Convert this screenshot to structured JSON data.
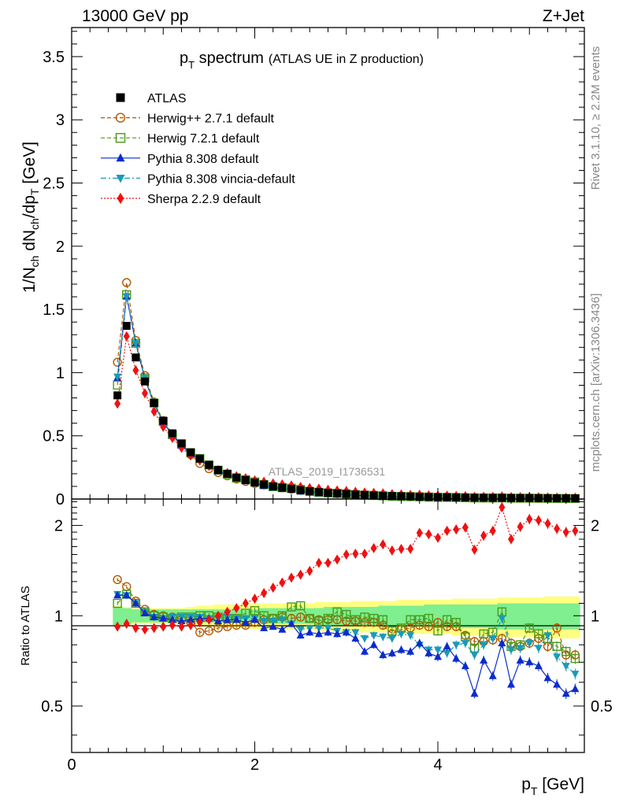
{
  "header": {
    "energy_label": "13000 GeV pp",
    "process_label": "Z+Jet"
  },
  "side_labels": {
    "rivet": "Rivet 3.1.10, ≥ 2.2M events",
    "mcplots": "mcplots.cern.ch [arXiv:1306.3436]"
  },
  "title": {
    "main": "p",
    "main_sub": "T",
    "main_rest": " spectrum",
    "detail": "(ATLAS UE in Z production)"
  },
  "watermark": "ATLAS_2019_I1736531",
  "axes": {
    "x_label_main": "p",
    "x_label_sub": "T",
    "x_label_unit": " [GeV]",
    "y_label_top": "1/N_ch dN_ch/dp_T [GeV]",
    "y_label_bottom": "Ratio to ATLAS",
    "x_ticks": [
      "0",
      "2",
      "4"
    ],
    "y_ticks_top": [
      "0",
      "0.5",
      "1",
      "1.5",
      "2",
      "2.5",
      "3",
      "3.5"
    ],
    "y_ticks_bottom": [
      "0.5",
      "1",
      "2"
    ]
  },
  "chart_data": {
    "type": "scatter",
    "x_range": [
      0,
      5.6
    ],
    "top_y_range": [
      0,
      3.73
    ],
    "ratio_y_range": [
      0.35,
      2.45
    ],
    "ratio_log_scale": true,
    "x": [
      0.5,
      0.6,
      0.7,
      0.8,
      0.9,
      1.0,
      1.1,
      1.2,
      1.3,
      1.4,
      1.5,
      1.6,
      1.7,
      1.8,
      1.9,
      2.0,
      2.1,
      2.2,
      2.3,
      2.4,
      2.5,
      2.6,
      2.7,
      2.8,
      2.9,
      3.0,
      3.1,
      3.2,
      3.3,
      3.4,
      3.5,
      3.6,
      3.7,
      3.8,
      3.9,
      4.0,
      4.1,
      4.2,
      4.3,
      4.4,
      4.5,
      4.6,
      4.7,
      4.8,
      4.9,
      5.0,
      5.1,
      5.2,
      5.3,
      5.4,
      5.5
    ],
    "atlas_values": [
      0.82,
      1.37,
      1.12,
      0.93,
      0.76,
      0.62,
      0.52,
      0.44,
      0.37,
      0.32,
      0.27,
      0.23,
      0.2,
      0.17,
      0.15,
      0.13,
      0.115,
      0.1,
      0.09,
      0.08,
      0.07,
      0.062,
      0.055,
      0.049,
      0.044,
      0.04,
      0.036,
      0.032,
      0.029,
      0.026,
      0.024,
      0.022,
      0.02,
      0.018,
      0.016,
      0.015,
      0.014,
      0.013,
      0.012,
      0.011,
      0.01,
      0.0095,
      0.009,
      0.0085,
      0.008,
      0.0075,
      0.007,
      0.0065,
      0.006,
      0.0058,
      0.0055
    ],
    "ratio_band_inner": [
      0.07,
      0.06,
      0.05,
      0.05,
      0.05,
      0.05,
      0.05,
      0.05,
      0.05,
      0.05,
      0.05,
      0.05,
      0.05,
      0.05,
      0.05,
      0.05,
      0.06,
      0.06,
      0.06,
      0.06,
      0.06,
      0.06,
      0.06,
      0.07,
      0.07,
      0.07,
      0.07,
      0.07,
      0.07,
      0.08,
      0.08,
      0.08,
      0.08,
      0.08,
      0.09,
      0.09,
      0.09,
      0.09,
      0.09,
      0.09,
      0.09,
      0.09,
      0.1,
      0.1,
      0.1,
      0.1,
      0.1,
      0.1,
      0.1,
      0.1,
      0.1
    ],
    "ratio_band_outer": [
      0.08,
      0.07,
      0.06,
      0.06,
      0.06,
      0.06,
      0.06,
      0.06,
      0.07,
      0.08,
      0.08,
      0.09,
      0.09,
      0.09,
      0.09,
      0.1,
      0.1,
      0.1,
      0.1,
      0.1,
      0.1,
      0.1,
      0.11,
      0.11,
      0.11,
      0.11,
      0.12,
      0.12,
      0.12,
      0.12,
      0.12,
      0.13,
      0.13,
      0.13,
      0.13,
      0.13,
      0.13,
      0.14,
      0.14,
      0.14,
      0.14,
      0.14,
      0.15,
      0.15,
      0.15,
      0.15,
      0.15,
      0.16,
      0.16,
      0.16,
      0.16
    ],
    "series": [
      {
        "name": "ATLAS",
        "key": "atlas",
        "color": "#000000",
        "marker": "square-filled",
        "line": "none",
        "ratio": null
      },
      {
        "name": "Herwig++ 2.7.1 default",
        "key": "herwigpp",
        "color": "#b35900",
        "marker": "circle-open",
        "line": "dashed",
        "ratio": [
          1.32,
          1.25,
          1.12,
          1.05,
          1.01,
          1.0,
          0.99,
          0.97,
          0.95,
          0.88,
          0.89,
          0.91,
          0.92,
          0.93,
          0.93,
          0.95,
          0.97,
          0.98,
          0.99,
          0.98,
          0.99,
          0.98,
          0.97,
          0.97,
          0.97,
          0.96,
          0.96,
          0.95,
          0.95,
          0.93,
          0.87,
          0.9,
          0.91,
          0.93,
          0.92,
          0.95,
          0.92,
          0.92,
          0.86,
          0.82,
          0.82,
          0.83,
          0.84,
          0.81,
          0.79,
          0.81,
          0.84,
          0.79,
          0.91,
          0.74,
          0.74
        ]
      },
      {
        "name": "Herwig 7.2.1 default",
        "key": "herwig7",
        "color": "#4a9a1a",
        "marker": "square-open",
        "line": "dashed",
        "ratio": [
          1.1,
          1.18,
          1.1,
          1.03,
          1.0,
          0.99,
          0.98,
          0.99,
          0.99,
          1.0,
          1.0,
          0.99,
          0.98,
          0.98,
          1.02,
          1.04,
          1.0,
          0.98,
          1.0,
          1.07,
          1.08,
          0.98,
          0.96,
          0.98,
          1.03,
          1.01,
          0.97,
          0.99,
          0.98,
          0.97,
          0.89,
          0.91,
          0.97,
          0.97,
          0.98,
          0.89,
          0.97,
          0.95,
          0.85,
          0.78,
          0.87,
          0.88,
          1.03,
          0.79,
          0.8,
          0.91,
          0.87,
          0.84,
          0.79,
          0.76,
          0.72
        ]
      },
      {
        "name": "Pythia 8.308 default",
        "key": "pythia",
        "color": "#0a2ccc",
        "marker": "triangle-up",
        "line": "solid",
        "ratio": [
          1.17,
          1.17,
          1.1,
          1.02,
          0.99,
          0.98,
          0.97,
          0.96,
          0.97,
          0.98,
          0.98,
          0.96,
          0.97,
          0.97,
          0.95,
          0.97,
          0.91,
          0.92,
          0.9,
          0.94,
          0.86,
          0.88,
          0.87,
          0.88,
          0.87,
          0.88,
          0.84,
          0.76,
          0.8,
          0.74,
          0.75,
          0.77,
          0.76,
          0.81,
          0.75,
          0.73,
          0.79,
          0.72,
          0.68,
          0.55,
          0.71,
          0.63,
          0.81,
          0.59,
          0.71,
          0.7,
          0.68,
          0.62,
          0.59,
          0.55,
          0.57
        ]
      },
      {
        "name": "Pythia 8.308 vincia-default",
        "key": "vincia",
        "color": "#1a9ab8",
        "marker": "triangle-down",
        "line": "dashdot",
        "ratio": [
          1.18,
          1.17,
          1.1,
          1.03,
          0.99,
          0.98,
          0.99,
          0.99,
          0.99,
          0.99,
          0.98,
          0.98,
          0.99,
          0.98,
          0.98,
          0.98,
          0.96,
          0.96,
          0.97,
          0.94,
          0.9,
          0.91,
          0.91,
          0.91,
          0.89,
          0.88,
          0.88,
          0.84,
          0.86,
          0.85,
          0.84,
          0.87,
          0.86,
          0.8,
          0.77,
          0.77,
          0.75,
          0.8,
          0.81,
          0.74,
          0.8,
          0.84,
          0.98,
          0.77,
          0.78,
          0.81,
          0.78,
          0.86,
          0.73,
          0.68,
          0.64
        ]
      },
      {
        "name": "Sherpa 2.2.9 default",
        "key": "sherpa",
        "color": "#ee1111",
        "marker": "diamond",
        "line": "dotted",
        "ratio": [
          0.92,
          0.94,
          0.91,
          0.9,
          0.91,
          0.92,
          0.93,
          0.92,
          0.93,
          0.95,
          0.97,
          1.0,
          1.03,
          1.06,
          1.1,
          1.14,
          1.19,
          1.24,
          1.29,
          1.34,
          1.37,
          1.41,
          1.5,
          1.5,
          1.54,
          1.6,
          1.61,
          1.61,
          1.68,
          1.73,
          1.65,
          1.67,
          1.67,
          1.89,
          1.87,
          1.82,
          1.92,
          1.94,
          1.97,
          1.66,
          1.85,
          1.92,
          2.3,
          1.8,
          1.98,
          2.1,
          2.08,
          2.03,
          1.95,
          1.9,
          1.92
        ]
      }
    ]
  }
}
